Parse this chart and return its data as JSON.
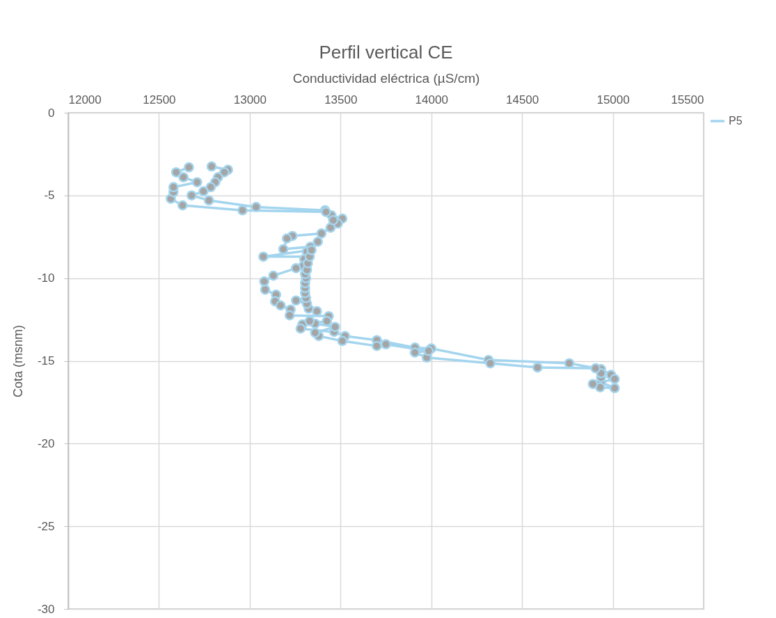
{
  "chart_data": {
    "type": "line",
    "title": "Perfil vertical CE",
    "xlabel": "Conductividad eléctrica (µS/cm)",
    "ylabel": "Cota (msnm)",
    "xlim": [
      12000,
      15500
    ],
    "ylim": [
      -30,
      0
    ],
    "xticks": [
      12000,
      12500,
      13000,
      13500,
      14000,
      14500,
      15000,
      15500
    ],
    "yticks": [
      -30,
      -25,
      -20,
      -15,
      -10,
      -5,
      0
    ],
    "grid": true,
    "legend": "right",
    "marker": "circle",
    "line_style": "solid",
    "series": [
      {
        "name": "P5",
        "color": "#a4d5ee",
        "x": [
          12790,
          12880,
          12860,
          12825,
          12810,
          12785,
          12745,
          12680,
          12775,
          13035,
          13415,
          13450,
          13510,
          13485,
          13445,
          13395,
          13235,
          13205,
          13185,
          13335,
          13315,
          13300,
          13295,
          13255,
          13130,
          13080,
          13085,
          13145,
          13140,
          13170,
          13225,
          13220,
          13435,
          13425,
          13290,
          13280,
          13465,
          13525,
          13700,
          13910,
          14000,
          14315,
          14760,
          14935,
          14990,
          15010,
          14935,
          15010,
          14930,
          14890,
          14935,
          14935,
          14905,
          14585,
          14325,
          13975,
          13910,
          13985,
          13750,
          13700,
          13510,
          13380,
          13360,
          13470,
          13360,
          13330,
          13370,
          13325,
          13315,
          13255,
          13310,
          13305,
          13305,
          13305,
          13310,
          13305,
          13315,
          13320,
          13330,
          13075,
          13340,
          13375,
          13460,
          13420,
          12960,
          12630,
          12565,
          12580,
          12580,
          12710,
          12635,
          12595,
          12665
        ],
        "values": [
          -3.25,
          -3.45,
          -3.6,
          -3.9,
          -4.2,
          -4.5,
          -4.75,
          -5.0,
          -5.3,
          -5.7,
          -5.9,
          -6.2,
          -6.4,
          -6.7,
          -6.95,
          -7.3,
          -7.45,
          -7.6,
          -8.25,
          -8.1,
          -8.4,
          -8.85,
          -9.25,
          -9.4,
          -9.85,
          -10.2,
          -10.7,
          -11.0,
          -11.4,
          -11.65,
          -11.9,
          -12.25,
          -12.3,
          -12.6,
          -12.8,
          -13.05,
          -13.25,
          -13.5,
          -13.75,
          -14.2,
          -14.25,
          -14.95,
          -15.15,
          -15.5,
          -15.85,
          -16.1,
          -16.3,
          -16.65,
          -16.6,
          -16.4,
          -16.0,
          -15.75,
          -15.45,
          -15.4,
          -15.15,
          -14.8,
          -14.5,
          -14.4,
          -14.0,
          -14.1,
          -13.8,
          -13.5,
          -13.3,
          -12.95,
          -12.75,
          -12.6,
          -12.0,
          -11.85,
          -11.55,
          -11.35,
          -11.2,
          -10.9,
          -10.6,
          -10.3,
          -10.0,
          -9.75,
          -9.5,
          -9.1,
          -8.7,
          -8.7,
          -8.3,
          -7.8,
          -6.5,
          -6.0,
          -5.9,
          -5.6,
          -5.2,
          -4.8,
          -4.5,
          -4.2,
          -3.9,
          -3.6,
          -3.3
        ]
      }
    ]
  }
}
